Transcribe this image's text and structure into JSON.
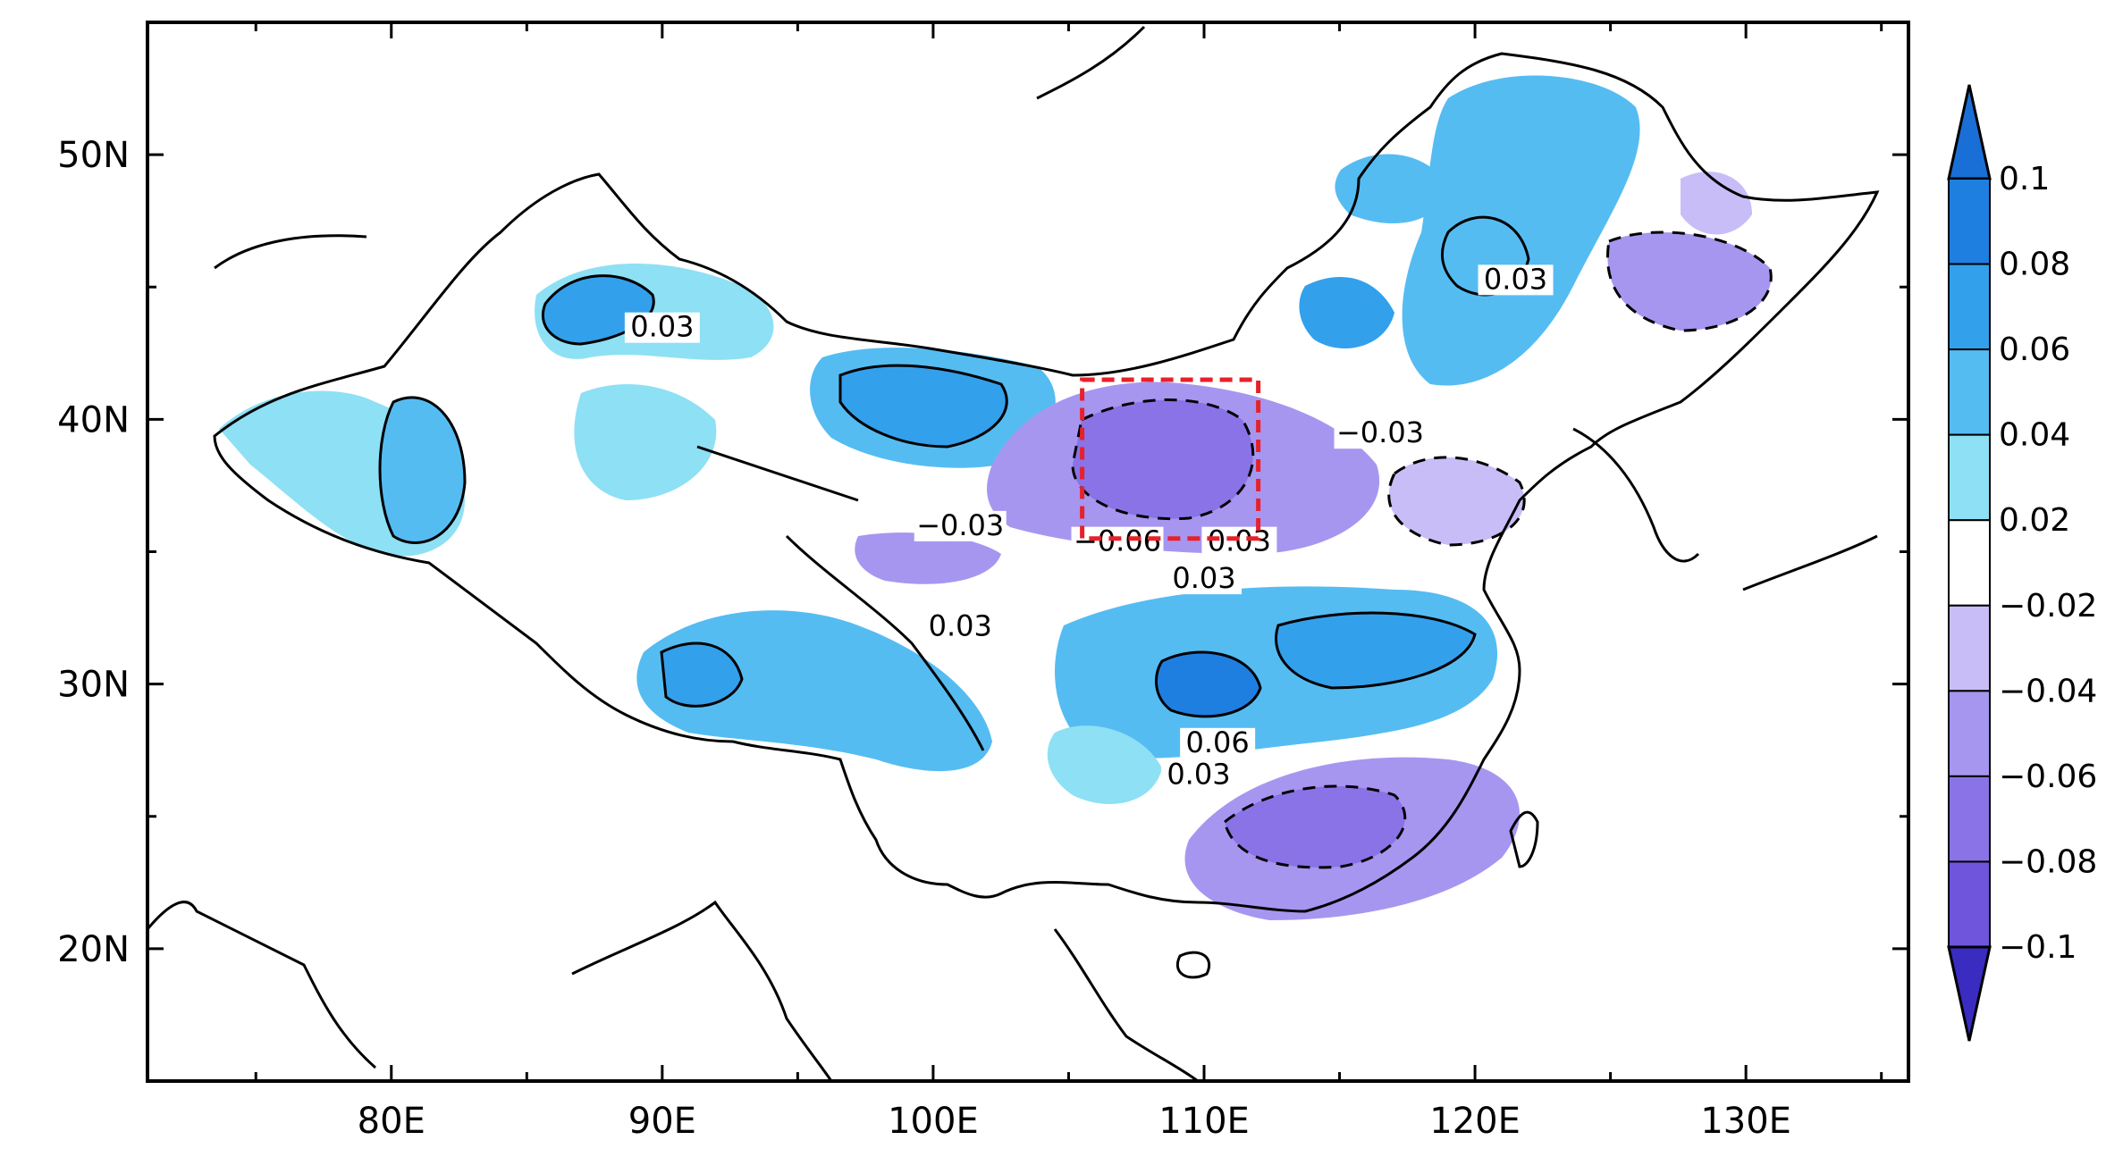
{
  "map": {
    "lon_labels": [
      "80E",
      "90E",
      "100E",
      "110E",
      "120E",
      "130E"
    ],
    "lat_labels": [
      "50N",
      "40N",
      "30N",
      "20N"
    ],
    "extent": {
      "lon": [
        71,
        136
      ],
      "lat": [
        15,
        55
      ]
    },
    "highlight_box": {
      "lon": [
        105.5,
        112
      ],
      "lat": [
        35.5,
        41.5
      ],
      "color": "#e8202a",
      "style": "dashed"
    },
    "contour_labels": [
      {
        "text": "0.03",
        "lon": 90,
        "lat": 43.5
      },
      {
        "text": "0.03",
        "lon": 121.5,
        "lat": 45.3
      },
      {
        "text": "−0.03",
        "lon": 116.5,
        "lat": 39.5
      },
      {
        "text": "−0.03",
        "lon": 101,
        "lat": 36
      },
      {
        "text": "−0.06",
        "lon": 106.8,
        "lat": 35.4
      },
      {
        "text": "0.03",
        "lon": 111.3,
        "lat": 35.4
      },
      {
        "text": "0.03",
        "lon": 110,
        "lat": 34
      },
      {
        "text": "0.03",
        "lon": 101,
        "lat": 32.2
      },
      {
        "text": "0.06",
        "lon": 110.5,
        "lat": 27.8
      },
      {
        "text": "0.03",
        "lon": 109.8,
        "lat": 26.6
      }
    ]
  },
  "colorbar": {
    "labels": [
      "0.1",
      "0.08",
      "0.06",
      "0.04",
      "0.02",
      "−0.02",
      "−0.04",
      "−0.06",
      "−0.08",
      "−0.1"
    ],
    "colors": [
      "#1f7fe0",
      "#33a0ec",
      "#55bcf2",
      "#8ee0f4",
      "#ffffff",
      "#c9bdf8",
      "#a796f0",
      "#8a73e6",
      "#6e55dc",
      "#3d32c8"
    ],
    "top_arrow_color": "#1a6fd6",
    "bottom_arrow_color": "#3a2cc0"
  }
}
